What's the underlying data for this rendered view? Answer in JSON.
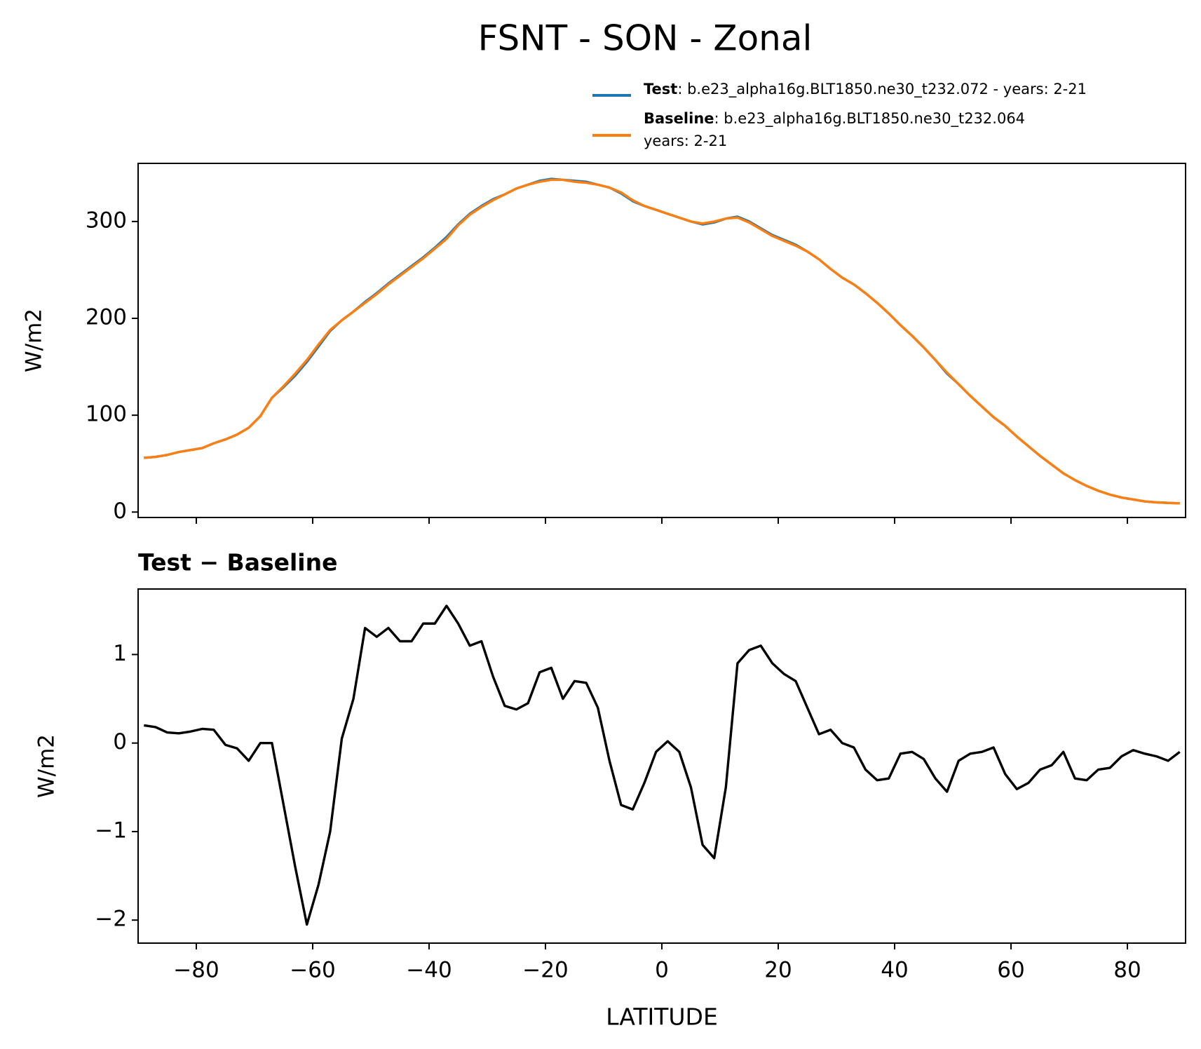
{
  "chart_data": [
    {
      "type": "line",
      "title": "FSNT - SON - Zonal",
      "ylabel": "W/m2",
      "x": [
        -89,
        -87,
        -85,
        -83,
        -81,
        -79,
        -77,
        -75,
        -73,
        -71,
        -69,
        -67,
        -65,
        -63,
        -61,
        -59,
        -57,
        -55,
        -53,
        -51,
        -49,
        -47,
        -45,
        -43,
        -41,
        -39,
        -37,
        -35,
        -33,
        -31,
        -29,
        -27,
        -25,
        -23,
        -21,
        -19,
        -17,
        -15,
        -13,
        -11,
        -9,
        -7,
        -5,
        -3,
        -1,
        1,
        3,
        5,
        7,
        9,
        11,
        13,
        15,
        17,
        19,
        21,
        23,
        25,
        27,
        29,
        31,
        33,
        35,
        37,
        39,
        41,
        43,
        45,
        47,
        49,
        51,
        53,
        55,
        57,
        59,
        61,
        63,
        65,
        67,
        69,
        71,
        73,
        75,
        77,
        79,
        81,
        83,
        85,
        87,
        89
      ],
      "series": [
        {
          "name": "Test",
          "detail": [
            ": b.e23_alpha16g.BLT1850.ne30_t232.072 - years: 2-21"
          ],
          "color": "#1f77b4",
          "values": [
            56,
            57,
            59,
            62,
            64,
            66,
            71,
            75,
            80,
            87,
            99,
            118,
            129,
            141,
            155,
            171,
            187,
            198,
            207,
            217,
            226,
            236,
            245,
            254,
            263,
            273,
            284,
            297,
            308,
            316,
            323,
            328,
            334,
            338,
            342,
            344,
            343,
            342,
            341,
            338,
            335,
            329,
            321,
            316,
            312,
            308,
            304,
            300,
            297,
            299,
            303,
            305,
            300,
            293,
            286,
            281,
            276,
            269,
            261,
            251,
            242,
            235,
            226,
            216,
            205,
            193,
            182,
            170,
            157,
            143,
            132,
            120,
            109,
            98,
            89,
            78,
            68,
            58,
            49,
            40,
            33,
            27,
            22,
            18,
            15,
            13,
            11,
            10,
            9.5,
            9
          ]
        },
        {
          "name": "Baseline",
          "detail": [
            ": b.e23_alpha16g.BLT1850.ne30_t232.064",
            "years: 2-21"
          ],
          "color": "#ff7f0e",
          "values": [
            56,
            57,
            59,
            62,
            64,
            66,
            71,
            75,
            80,
            87,
            99,
            118,
            130,
            143,
            157,
            173,
            188,
            198,
            207,
            216,
            225,
            235,
            244,
            253,
            262,
            272,
            282,
            296,
            307,
            315,
            322,
            328,
            334,
            338,
            341,
            343,
            343,
            341,
            340,
            338,
            335,
            330,
            322,
            316,
            312,
            308,
            304,
            300,
            298,
            300,
            303,
            304,
            299,
            292,
            285,
            280,
            275,
            269,
            261,
            251,
            242,
            235,
            226,
            216,
            205,
            193,
            182,
            170,
            157,
            144,
            132,
            120,
            109,
            98,
            89,
            78,
            68,
            58,
            49,
            40,
            33,
            27,
            22,
            18,
            15,
            13,
            11,
            10,
            9.5,
            9
          ]
        }
      ],
      "xlim": [
        -90,
        90
      ],
      "xticks": [
        -80,
        -60,
        -40,
        -20,
        0,
        20,
        40,
        60,
        80
      ],
      "ylim": [
        -5.6,
        360
      ],
      "yticks": [
        0,
        100,
        200,
        300
      ]
    },
    {
      "type": "line",
      "title": "Test − Baseline",
      "xlabel": "LATITUDE",
      "ylabel": "W/m2",
      "x": [
        -89,
        -87,
        -85,
        -83,
        -81,
        -79,
        -77,
        -75,
        -73,
        -71,
        -69,
        -67,
        -65,
        -63,
        -61,
        -59,
        -57,
        -55,
        -53,
        -51,
        -49,
        -47,
        -45,
        -43,
        -41,
        -39,
        -37,
        -35,
        -33,
        -31,
        -29,
        -27,
        -25,
        -23,
        -21,
        -19,
        -17,
        -15,
        -13,
        -11,
        -9,
        -7,
        -5,
        -3,
        -1,
        1,
        3,
        5,
        7,
        9,
        11,
        13,
        15,
        17,
        19,
        21,
        23,
        25,
        27,
        29,
        31,
        33,
        35,
        37,
        39,
        41,
        43,
        45,
        47,
        49,
        51,
        53,
        55,
        57,
        59,
        61,
        63,
        65,
        67,
        69,
        71,
        73,
        75,
        77,
        79,
        81,
        83,
        85,
        87,
        89
      ],
      "series": [
        {
          "color": "#000000",
          "values": [
            0.2,
            0.18,
            0.12,
            0.11,
            0.13,
            0.16,
            0.15,
            -0.02,
            -0.06,
            -0.2,
            0.0,
            0.0,
            -0.7,
            -1.4,
            -2.05,
            -1.6,
            -1.0,
            0.05,
            0.5,
            1.3,
            1.2,
            1.3,
            1.15,
            1.15,
            1.35,
            1.35,
            1.55,
            1.35,
            1.1,
            1.15,
            0.75,
            0.42,
            0.38,
            0.45,
            0.8,
            0.85,
            0.5,
            0.7,
            0.68,
            0.4,
            -0.2,
            -0.7,
            -0.75,
            -0.45,
            -0.1,
            0.02,
            -0.1,
            -0.5,
            -1.15,
            -1.3,
            -0.5,
            0.9,
            1.05,
            1.1,
            0.9,
            0.78,
            0.7,
            0.4,
            0.1,
            0.15,
            0.0,
            -0.05,
            -0.3,
            -0.42,
            -0.4,
            -0.12,
            -0.1,
            -0.18,
            -0.4,
            -0.55,
            -0.2,
            -0.12,
            -0.1,
            -0.05,
            -0.35,
            -0.52,
            -0.45,
            -0.3,
            -0.25,
            -0.1,
            -0.4,
            -0.42,
            -0.3,
            -0.28,
            -0.15,
            -0.08,
            -0.12,
            -0.15,
            -0.2,
            -0.1
          ]
        }
      ],
      "xlim": [
        -90,
        90
      ],
      "xticks": [
        {
          "value": -80,
          "label": "−80"
        },
        {
          "value": -60,
          "label": "−60"
        },
        {
          "value": -40,
          "label": "−40"
        },
        {
          "value": -20,
          "label": "−20"
        },
        0,
        20,
        40,
        60,
        80
      ],
      "ylim": [
        -2.26,
        1.74
      ],
      "yticks": [
        {
          "value": -2,
          "label": "−2"
        },
        {
          "value": -1,
          "label": "−1"
        },
        0,
        1
      ]
    }
  ]
}
